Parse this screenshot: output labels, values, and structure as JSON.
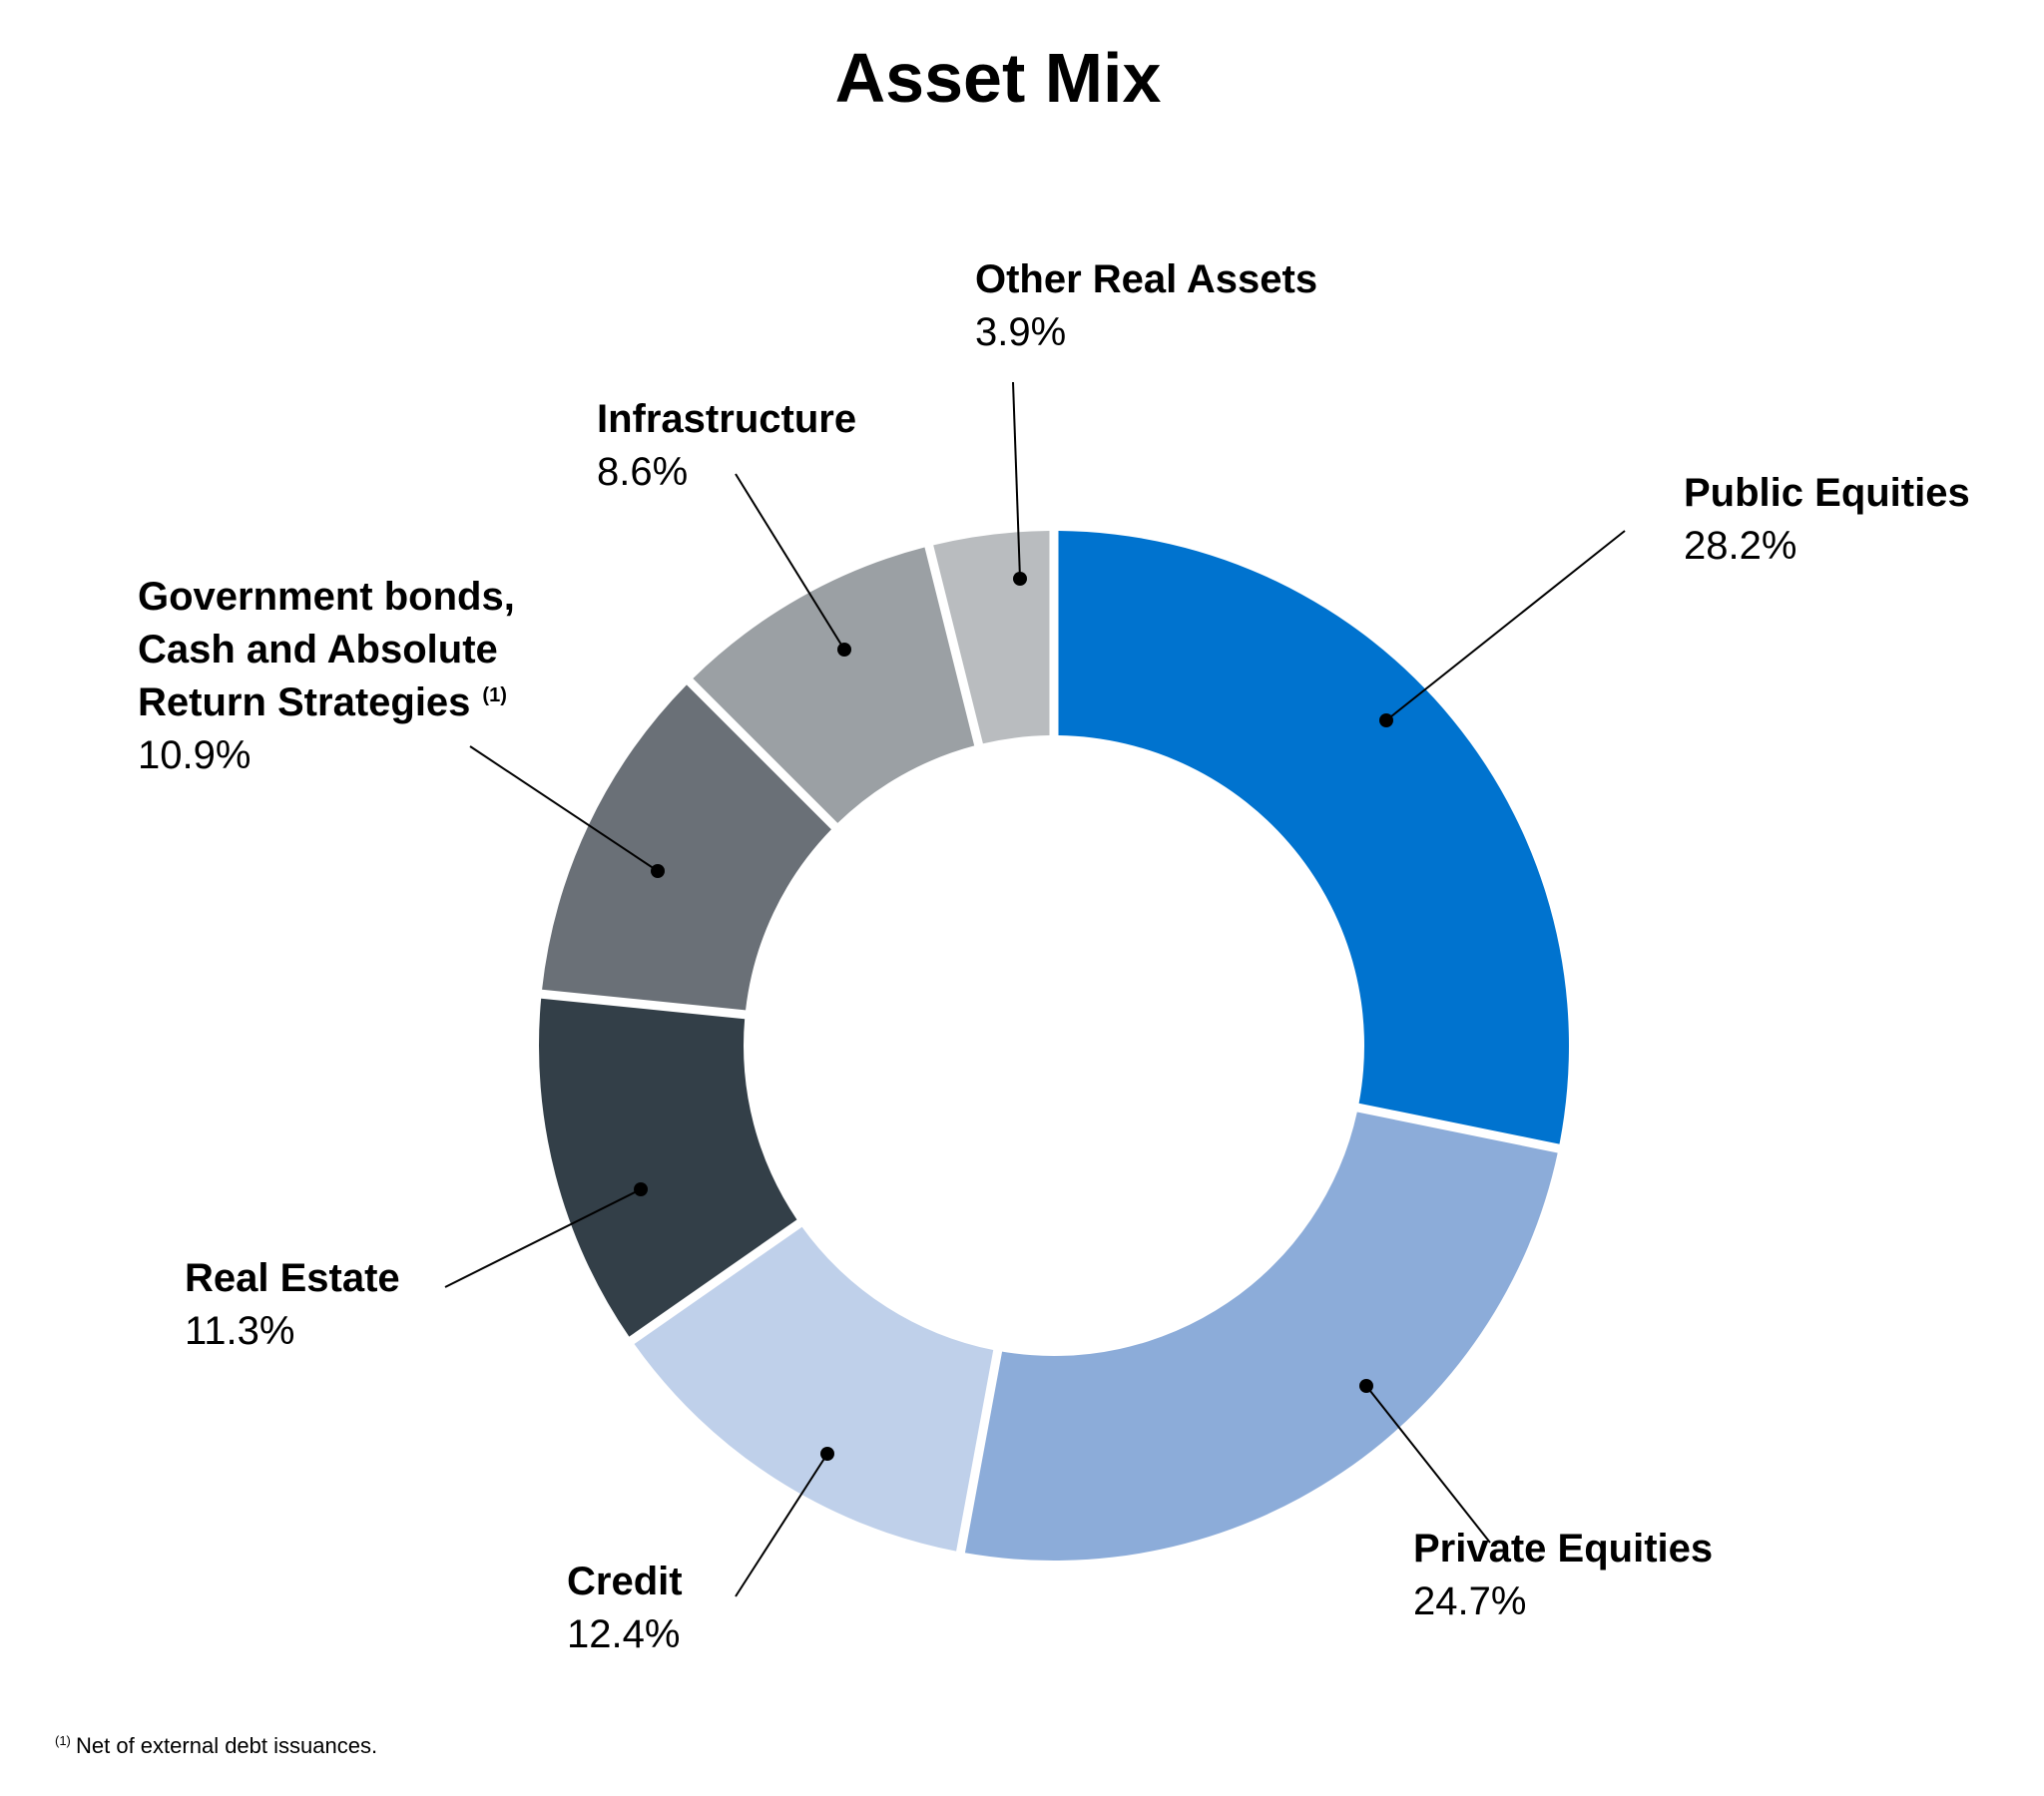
{
  "chart_data": {
    "type": "pie",
    "variant": "donut",
    "title": "Asset Mix",
    "categories": [
      "Public Equities",
      "Private Equities",
      "Credit",
      "Real Estate",
      "Government bonds, Cash and Absolute Return Strategies",
      "Infrastructure",
      "Other Real Assets"
    ],
    "values": [
      28.2,
      24.7,
      12.4,
      11.3,
      10.9,
      8.6,
      3.9
    ],
    "value_labels": [
      "28.2%",
      "24.7%",
      "12.4%",
      "11.3%",
      "10.9%",
      "8.6%",
      "3.9%"
    ],
    "label_lines": [
      [
        "Public Equities"
      ],
      [
        "Private Equities"
      ],
      [
        "Credit"
      ],
      [
        "Real Estate"
      ],
      [
        "Government bonds,",
        "Cash and Absolute",
        "Return Strategies"
      ],
      [
        "Infrastructure"
      ],
      [
        "Other Real Assets"
      ]
    ],
    "label_superscripts": [
      "",
      "",
      "",
      "",
      "(1)",
      "",
      ""
    ],
    "colors": [
      "#0073cf",
      "#8cacd9",
      "#bfd0ea",
      "#333f48",
      "#6a7077",
      "#9ba0a4",
      "#b9bcbf"
    ],
    "start": "12 o'clock",
    "direction": "clockwise",
    "footnote": {
      "marker": "(1)",
      "text": "Net of external debt issuances."
    }
  }
}
